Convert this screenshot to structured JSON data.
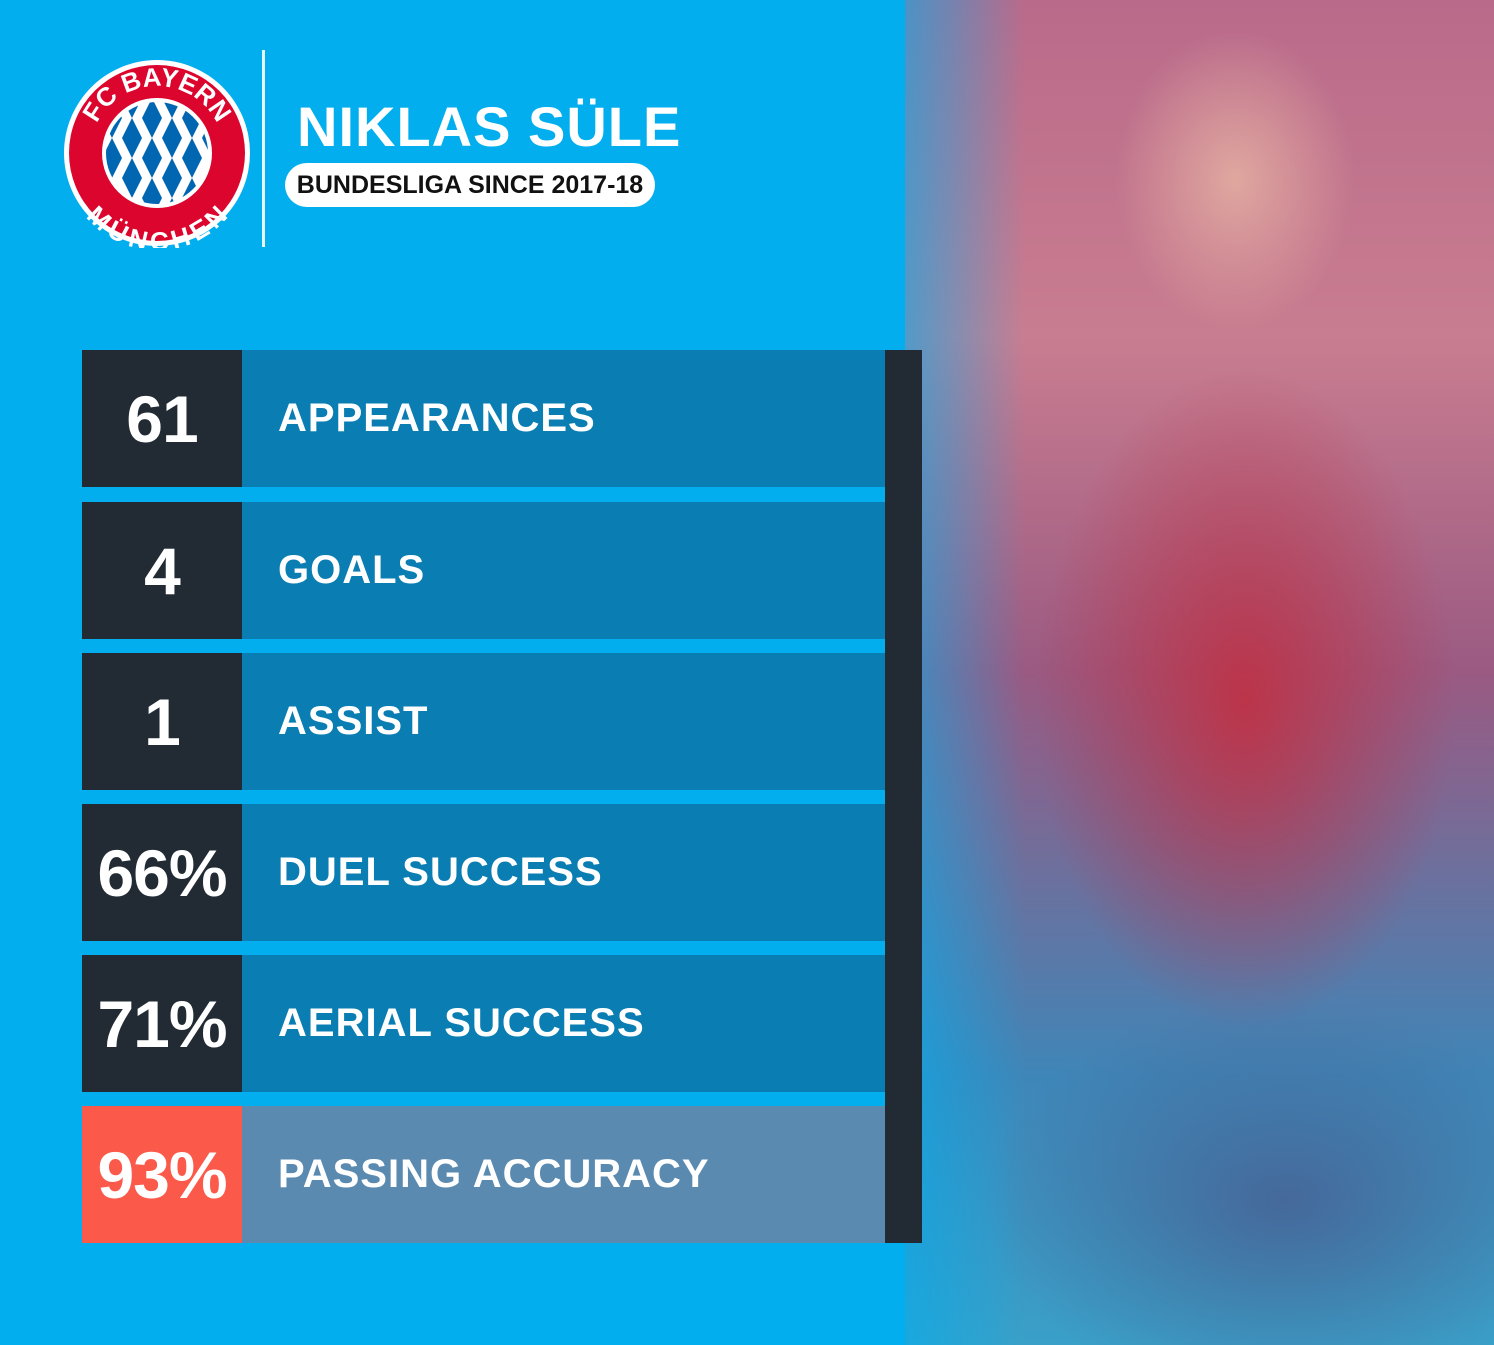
{
  "header": {
    "club_logo": {
      "text_top": "FC BAYERN",
      "text_bottom": "MÜNCHEN",
      "colors": {
        "ring": "#dc052d",
        "blue": "#0066b2"
      }
    },
    "player_name": "NIKLAS SÜLE",
    "subtitle": "BUNDESLIGA SINCE 2017-18"
  },
  "stats": [
    {
      "value": "61",
      "label": "APPEARANCES"
    },
    {
      "value": "4",
      "label": "GOALS"
    },
    {
      "value": "1",
      "label": "ASSIST"
    },
    {
      "value": "66%",
      "label": "DUEL SUCCESS"
    },
    {
      "value": "71%",
      "label": "AERIAL SUCCESS"
    },
    {
      "value": "93%",
      "label": "PASSING ACCURACY",
      "highlight": true
    }
  ],
  "colors": {
    "background": "#02aeee",
    "number_box": "#222b34",
    "label_box": "#0a7db2",
    "highlight_number": "#fb5a4a",
    "highlight_label": "#5b8ab0"
  }
}
